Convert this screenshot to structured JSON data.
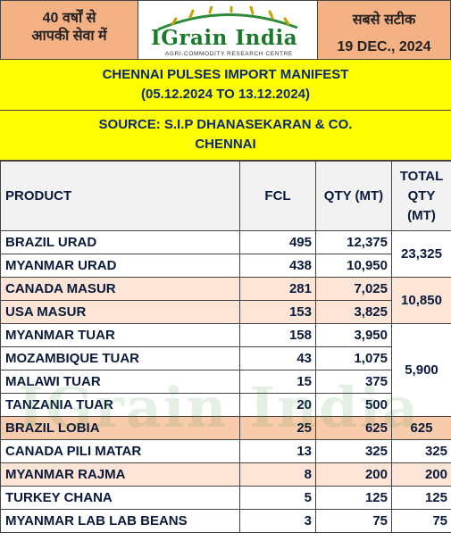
{
  "header": {
    "left_line1": "40 वर्षों से",
    "left_line2": "आपकी सेवा में",
    "brand": "IGrain India",
    "tagline": "AGRI-COMMODITY RESEARCH CENTRE",
    "right_line1": "सबसे सटीक",
    "date": "19 DEC., 2024"
  },
  "title": {
    "line1": "CHENNAI PULSES IMPORT MANIFEST",
    "line2": "(05.12.2024 TO 13.12.2024)"
  },
  "source": {
    "line1": "SOURCE: S.I.P DHANASEKARAN & CO.",
    "line2": "CHENNAI"
  },
  "watermark": "IGrain India",
  "table": {
    "headers": {
      "product": "PRODUCT",
      "fcl": "FCL",
      "qty": "QTY (MT)",
      "total": "TOTAL QTY (MT)"
    },
    "rows": [
      {
        "product": "BRAZIL URAD",
        "fcl": "495",
        "qty": "12,375"
      },
      {
        "product": "MYANMAR URAD",
        "fcl": "438",
        "qty": "10,950"
      },
      {
        "product": "CANADA MASUR",
        "fcl": "281",
        "qty": "7,025"
      },
      {
        "product": "USA MASUR",
        "fcl": "153",
        "qty": "3,825"
      },
      {
        "product": "MYANMAR TUAR",
        "fcl": "158",
        "qty": "3,950"
      },
      {
        "product": "MOZAMBIQUE TUAR",
        "fcl": "43",
        "qty": "1,075"
      },
      {
        "product": "MALAWI TUAR",
        "fcl": "15",
        "qty": "375"
      },
      {
        "product": "TANZANIA TUAR",
        "fcl": "20",
        "qty": "500"
      },
      {
        "product": "BRAZIL LOBIA",
        "fcl": "25",
        "qty": "625"
      },
      {
        "product": "CANADA PILI MATAR",
        "fcl": "13",
        "qty": "325"
      },
      {
        "product": "MYANMAR RAJMA",
        "fcl": "8",
        "qty": "200"
      },
      {
        "product": "TURKEY CHANA",
        "fcl": "5",
        "qty": "125"
      },
      {
        "product": "MYANMAR LAB LAB BEANS",
        "fcl": "3",
        "qty": "75"
      }
    ],
    "totals": [
      "23,325",
      "10,850",
      "5,900",
      "625",
      "325",
      "200",
      "125",
      "75"
    ]
  },
  "colors": {
    "header_orange": "#f4b183",
    "title_yellow": "#ffff00",
    "row_white": "#ffffff",
    "row_peach": "#fce4d6",
    "row_pink": "#f8cbad",
    "brand_green": "#1a7a2a"
  }
}
